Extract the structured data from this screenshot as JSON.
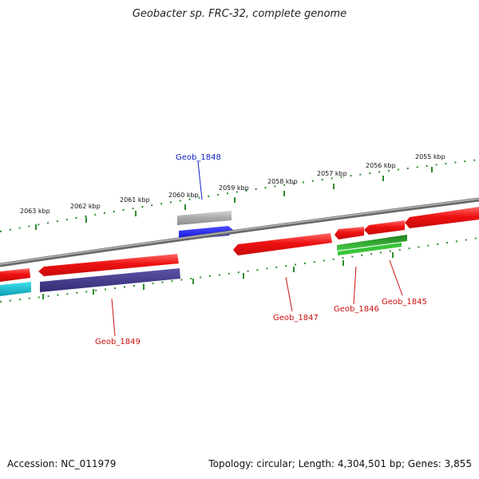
{
  "title": "Geobacter sp. FRC-32, complete genome",
  "footer": {
    "accession": "Accession: NC_011979",
    "summary": "Topology: circular; Length: 4,304,501 bp; Genes: 3,855"
  },
  "colors": {
    "backbone": "#7a7a7a",
    "ticks": "#2e8b2e",
    "forward_cds": "#e8141c",
    "reverse_cds": "#e8141c",
    "gene_label_red": "#cc1010",
    "gene_label_blue": "#1020c0",
    "gray_track": "#a8a8a8",
    "blue_track": "#1a1ae6",
    "purple_track": "#3d3580",
    "green_track": "#2fb02f",
    "cyan_track": "#12b8c8"
  },
  "tick_labels": [
    "2063 kbp",
    "2062 kbp",
    "2061 kbp",
    "2060 kbp",
    "2059 kbp",
    "2058 kbp",
    "2057 kbp",
    "2056 kbp",
    "2055 kbp"
  ],
  "genes": [
    {
      "id": "Geob_1848",
      "label": "Geob_1848",
      "color": "blue"
    },
    {
      "id": "Geob_1849",
      "label": "Geob_1849",
      "color": "red"
    },
    {
      "id": "Geob_1847",
      "label": "Geob_1847",
      "color": "red"
    },
    {
      "id": "Geob_1846",
      "label": "Geob_1846",
      "color": "red"
    },
    {
      "id": "Geob_1845",
      "label": "Geob_1845",
      "color": "red"
    }
  ]
}
